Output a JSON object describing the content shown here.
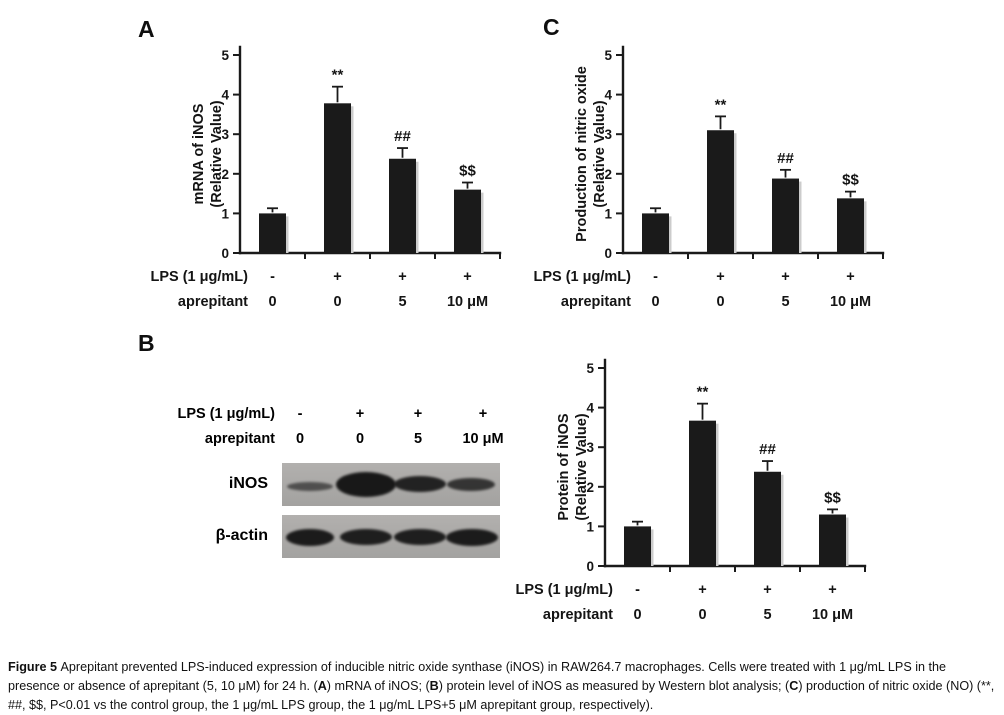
{
  "panel_letters": {
    "a": "A",
    "b": "B",
    "c": "C"
  },
  "chart_data": [
    {
      "type": "bar",
      "panel": "A",
      "name": "mRNA of iNOS",
      "ylabel_lines": [
        "mRNA of iNOS",
        "(Relative Value)"
      ],
      "ylabel": "mRNA of iNOS (Relative Value)",
      "ylim": [
        0,
        5
      ],
      "yticks": [
        0,
        1,
        2,
        3,
        4,
        5
      ],
      "categories": [
        "LPS - / aprepitant 0",
        "LPS + / aprepitant 0",
        "LPS + / aprepitant 5",
        "LPS + / aprepitant 10 uM"
      ],
      "values": [
        1.0,
        3.78,
        2.38,
        1.6
      ],
      "errors": [
        0.13,
        0.42,
        0.27,
        0.18
      ],
      "sig_labels": [
        "",
        "**",
        "##",
        "$$"
      ],
      "x_rows": [
        {
          "label": "LPS (1 μg/mL)",
          "values": [
            "-",
            "+",
            "+",
            "+"
          ]
        },
        {
          "label": "aprepitant",
          "values": [
            "0",
            "0",
            "5",
            "10 μM"
          ]
        }
      ],
      "bar_color": "#1a1a1a",
      "grid": false,
      "legend": "none"
    },
    {
      "type": "bar",
      "panel": "B",
      "name": "Protein of iNOS",
      "ylabel_lines": [
        "Protein of  iNOS",
        "(Relative Value)"
      ],
      "ylabel": "Protein of iNOS (Relative Value)",
      "ylim": [
        0,
        5
      ],
      "yticks": [
        0,
        1,
        2,
        3,
        4,
        5
      ],
      "categories": [
        "LPS - / aprepitant 0",
        "LPS + / aprepitant 0",
        "LPS + / aprepitant 5",
        "LPS + / aprepitant 10 uM"
      ],
      "values": [
        1.0,
        3.67,
        2.38,
        1.3
      ],
      "errors": [
        0.12,
        0.43,
        0.27,
        0.13
      ],
      "sig_labels": [
        "",
        "**",
        "##",
        "$$"
      ],
      "x_rows": [
        {
          "label": "LPS (1 μg/mL)",
          "values": [
            "-",
            "+",
            "+",
            "+"
          ]
        },
        {
          "label": "aprepitant",
          "values": [
            "0",
            "0",
            "5",
            "10 μM"
          ]
        }
      ],
      "bar_color": "#1a1a1a",
      "grid": false,
      "legend": "none"
    },
    {
      "type": "bar",
      "panel": "C",
      "name": "Production of nitric oxide",
      "ylabel_lines": [
        "Production of nitric oxide",
        "(Relative Value)"
      ],
      "ylabel": "Production of nitric oxide (Relative Value)",
      "ylim": [
        0,
        5
      ],
      "yticks": [
        0,
        1,
        2,
        3,
        4,
        5
      ],
      "categories": [
        "LPS - / aprepitant 0",
        "LPS + / aprepitant 0",
        "LPS + / aprepitant 5",
        "LPS + / aprepitant 10 uM"
      ],
      "values": [
        1.0,
        3.1,
        1.88,
        1.38
      ],
      "errors": [
        0.13,
        0.35,
        0.22,
        0.17
      ],
      "sig_labels": [
        "",
        "**",
        "##",
        "$$"
      ],
      "x_rows": [
        {
          "label": "LPS (1 μg/mL)",
          "values": [
            "-",
            "+",
            "+",
            "+"
          ]
        },
        {
          "label": "aprepitant",
          "values": [
            "0",
            "0",
            "5",
            "10 μM"
          ]
        }
      ],
      "bar_color": "#1a1a1a",
      "grid": false,
      "legend": "none"
    }
  ],
  "blot": {
    "strip_bg": "#a9a8a6",
    "header_rows": [
      {
        "label": "LPS (1 μg/mL)",
        "values": [
          "-",
          "+",
          "+",
          "+"
        ]
      },
      {
        "label": "aprepitant",
        "values": [
          "0",
          "0",
          "5",
          "10 μM"
        ]
      }
    ],
    "rows": [
      {
        "label": "iNOS",
        "bands": [
          [
            28,
            23,
            46,
            9,
            0.6
          ],
          [
            84,
            21,
            60,
            25,
            0.97
          ],
          [
            138,
            21,
            52,
            16,
            0.9
          ],
          [
            189,
            21,
            48,
            13,
            0.78
          ]
        ]
      },
      {
        "label": "β-actin",
        "bands": [
          [
            28,
            22,
            48,
            17,
            0.95
          ],
          [
            84,
            22,
            52,
            16,
            0.93
          ],
          [
            138,
            22,
            52,
            16,
            0.93
          ],
          [
            190,
            22,
            52,
            17,
            0.95
          ]
        ]
      }
    ]
  },
  "caption": {
    "segments": [
      {
        "t": "Figure 5 ",
        "b": true
      },
      {
        "t": "Aprepitant prevented LPS-induced expression of inducible nitric oxide synthase (iNOS) in RAW264.7 macrophages. Cells were treated with 1 μg/mL LPS in the presence or absence of aprepitant (5, 10 μM) for 24 h. (",
        "b": false
      },
      {
        "t": "A",
        "b": true
      },
      {
        "t": ") mRNA of iNOS; (",
        "b": false
      },
      {
        "t": "B",
        "b": true
      },
      {
        "t": ") protein level of iNOS as measured by Western blot analysis; (",
        "b": false
      },
      {
        "t": "C",
        "b": true
      },
      {
        "t": ") production of nitric oxide (NO) (**, ##, $$, P<0.01 vs the control group, the 1 μg/mL LPS group, the 1 μg/mL LPS+5 μM aprepitant group, respectively).",
        "b": false
      }
    ]
  }
}
